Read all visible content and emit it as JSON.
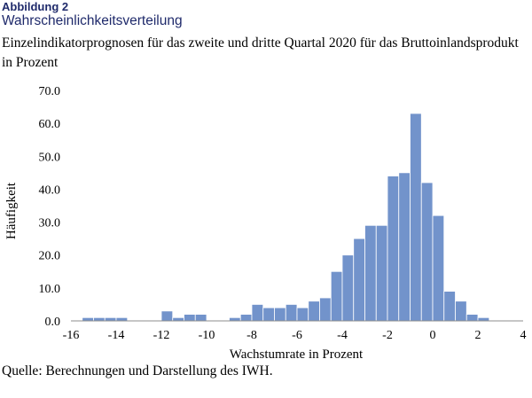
{
  "figure": {
    "label": "Abbildung 2",
    "title": "Wahrscheinlichkeitsverteilung",
    "subtitle": "Einzelindikatorprognosen für das zweite und dritte Quartal 2020 für das Bruttoinlandsprodukt in Prozent",
    "source": "Quelle: Berechnungen und Darstellung des IWH."
  },
  "colors": {
    "bar": "#7293cb",
    "bar_stroke": "#ffffff",
    "axis": "#8c8c8c",
    "text": "#000000",
    "heading": "#1f2a6b"
  },
  "chart_data": {
    "type": "bar",
    "title": "",
    "xlabel": "Wachstumrate in Prozent",
    "ylabel": "Häufigkeit",
    "xlim": [
      -16,
      4
    ],
    "ylim": [
      0,
      70
    ],
    "x_ticks": [
      "-16",
      "-14",
      "-12",
      "-10",
      "-8",
      "-6",
      "-4",
      "-2",
      "0",
      "2",
      "4"
    ],
    "x_tick_values": [
      -16,
      -14,
      -12,
      -10,
      -8,
      -6,
      -4,
      -2,
      0,
      2,
      4
    ],
    "y_ticks": [
      "0.0",
      "10.0",
      "20.0",
      "30.0",
      "40.0",
      "50.0",
      "60.0",
      "70.0"
    ],
    "y_tick_values": [
      0,
      10,
      20,
      30,
      40,
      50,
      60,
      70
    ],
    "grid": false,
    "legend": "none",
    "bin_width": 0.5,
    "bin_starts": [
      -15.5,
      -15.0,
      -14.5,
      -14.0,
      -12.0,
      -11.5,
      -11.0,
      -10.5,
      -9.0,
      -8.5,
      -8.0,
      -7.5,
      -7.0,
      -6.5,
      -6.0,
      -5.5,
      -5.0,
      -4.5,
      -4.0,
      -3.5,
      -3.0,
      -2.5,
      -2.0,
      -1.5,
      -1.0,
      -0.5,
      0.0,
      0.5,
      1.0,
      1.5,
      2.0
    ],
    "values": [
      1,
      1,
      1,
      1,
      3,
      1,
      2,
      2,
      1,
      2,
      5,
      4,
      4,
      5,
      4,
      6,
      7,
      15,
      20,
      25,
      29,
      29,
      44,
      45,
      63,
      42,
      32,
      9,
      6,
      2,
      1
    ]
  }
}
